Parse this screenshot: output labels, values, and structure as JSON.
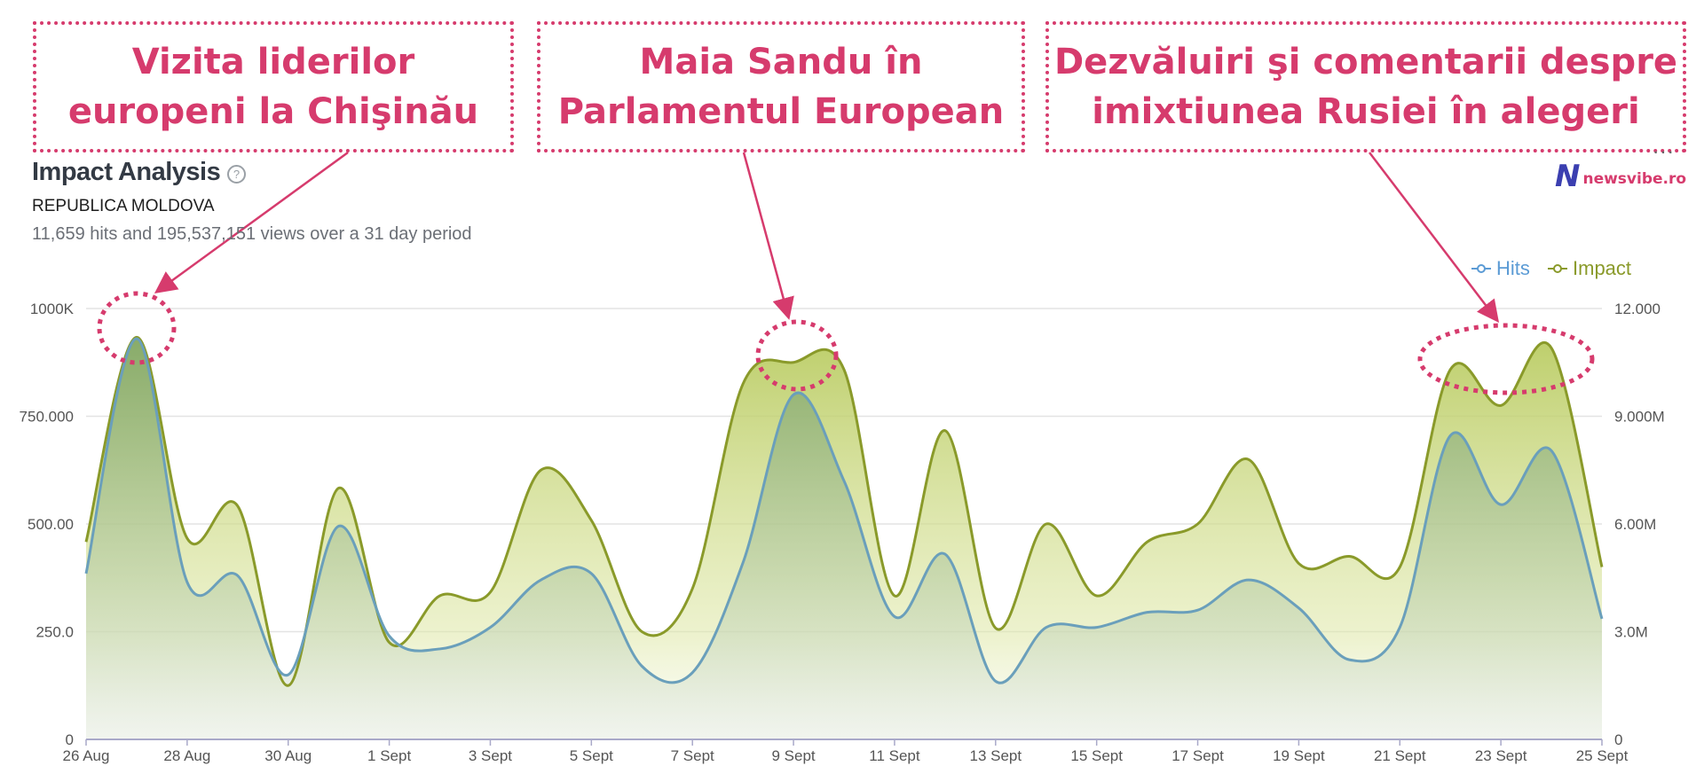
{
  "callouts": [
    {
      "line1": "Vizita liderilor",
      "line2": "europeni la Chişinău"
    },
    {
      "line1": "Maia Sandu în",
      "line2": "Parlamentul European"
    },
    {
      "line1": "Dezvăluiri şi comentarii despre",
      "line2": "imixtiunea Rusiei în alegeri"
    }
  ],
  "header": {
    "title": "Impact Analysis",
    "help_icon": "?",
    "subtitle": "REPUBLICA MOLDOVA",
    "summary": "11,659 hits and 195,537,151 views over a 31 day period",
    "menu_icon": "···",
    "logo_mark": "N",
    "logo_text": "newsvibe.ro"
  },
  "colors": {
    "accent": "#d63b6d",
    "hits": "#5b9bd5",
    "hits_line": "#6a9fbb",
    "impact": "#8a9a2a",
    "impact_fill": "#c9d87a"
  },
  "chart_data": {
    "type": "area",
    "x": [
      "26 Aug",
      "27 Aug",
      "28 Aug",
      "29 Aug",
      "30 Aug",
      "31 Aug",
      "1 Sept",
      "2 Sept",
      "3 Sept",
      "4 Sept",
      "5 Sept",
      "6 Sept",
      "7 Sept",
      "8 Sept",
      "9 Sept",
      "10 Sept",
      "11 Sept",
      "12 Sept",
      "13 Sept",
      "14 Sept",
      "15 Sept",
      "16 Sept",
      "17 Sept",
      "18 Sept",
      "19 Sept",
      "20 Sept",
      "21 Sept",
      "22 Sept",
      "23 Sept",
      "24 Sept",
      "25 Sept"
    ],
    "xticks": [
      "26 Aug",
      "28 Aug",
      "30 Aug",
      "1 Sept",
      "3 Sept",
      "5 Sept",
      "7 Sept",
      "9 Sept",
      "11 Sept",
      "13 Sept",
      "15 Sept",
      "17 Sept",
      "19 Sept",
      "21 Sept",
      "23 Sept",
      "25 Sept"
    ],
    "series": [
      {
        "name": "Hits",
        "axis": "left",
        "values": [
          385,
          930,
          365,
          380,
          150,
          495,
          240,
          210,
          260,
          370,
          385,
          170,
          155,
          410,
          800,
          600,
          285,
          430,
          135,
          260,
          260,
          295,
          300,
          370,
          305,
          185,
          260,
          705,
          545,
          670,
          280
        ]
      },
      {
        "name": "Impact",
        "axis": "right",
        "values": [
          5.5,
          11.2,
          5.6,
          6.5,
          1.5,
          7.0,
          2.7,
          4.0,
          4.1,
          7.5,
          6.1,
          3.0,
          4.2,
          9.9,
          10.5,
          10.3,
          4.0,
          8.6,
          3.1,
          6.0,
          4.0,
          5.5,
          6.0,
          7.8,
          4.9,
          5.1,
          4.8,
          10.3,
          9.3,
          10.9,
          4.8
        ]
      }
    ],
    "left_axis": {
      "ticks": [
        "0",
        "250.0",
        "500.00",
        "750.000",
        "1000K"
      ],
      "ylim": [
        0,
        1000
      ]
    },
    "right_axis": {
      "ticks": [
        "0",
        "3.0M",
        "6.00M",
        "9.000M",
        "12.000"
      ],
      "ylim": [
        0,
        12
      ]
    },
    "legend_position": "top-right",
    "grid": true
  }
}
